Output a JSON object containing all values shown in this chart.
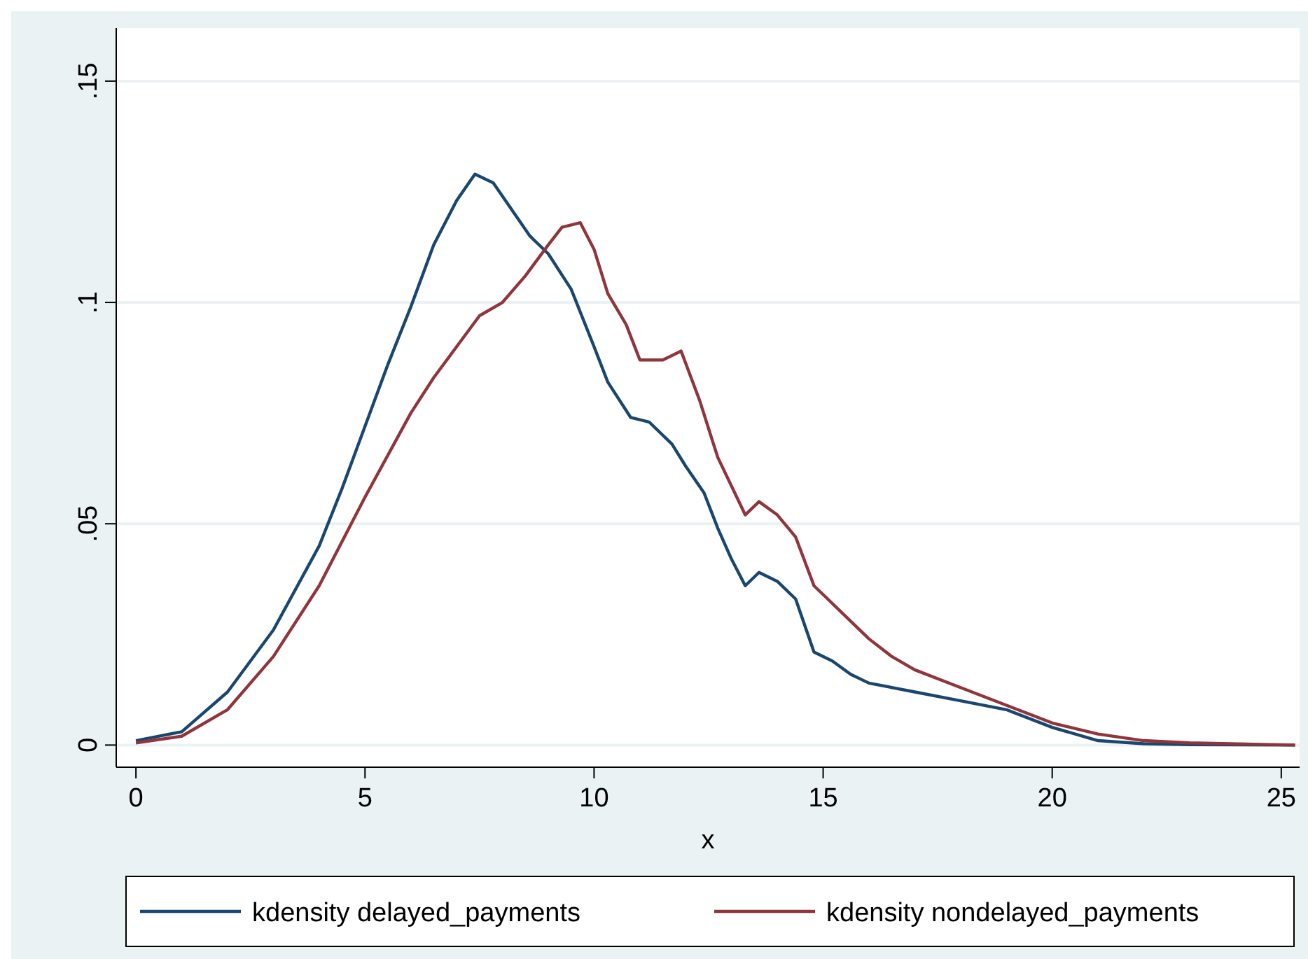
{
  "chart_data": {
    "type": "line",
    "xlabel": "x",
    "xlim": [
      -0.43,
      25.4
    ],
    "ylim": [
      -0.005,
      0.162
    ],
    "xticks": [
      0,
      5,
      10,
      15,
      20,
      25
    ],
    "yticks": [
      {
        "value": 0,
        "label": "0"
      },
      {
        "value": 0.05,
        "label": ".05"
      },
      {
        "value": 0.1,
        "label": ".1"
      },
      {
        "value": 0.15,
        "label": ".15"
      }
    ],
    "grid": "y",
    "legend": "bottom",
    "series": [
      {
        "name": "kdensity delayed_payments",
        "color": "#1a476f",
        "x": [
          0,
          1,
          2,
          3,
          4,
          4.5,
          5,
          5.5,
          6,
          6.5,
          7,
          7.4,
          7.8,
          8.2,
          8.6,
          9,
          9.5,
          10,
          10.3,
          10.8,
          11.2,
          11.7,
          12,
          12.4,
          12.7,
          13,
          13.3,
          13.6,
          14,
          14.4,
          14.8,
          15.2,
          15.6,
          16,
          17,
          18,
          19,
          20,
          21,
          22,
          23,
          25.3
        ],
        "values": [
          0.001,
          0.003,
          0.012,
          0.026,
          0.045,
          0.058,
          0.072,
          0.086,
          0.099,
          0.113,
          0.123,
          0.129,
          0.127,
          0.121,
          0.115,
          0.111,
          0.103,
          0.09,
          0.082,
          0.074,
          0.073,
          0.068,
          0.063,
          0.057,
          0.049,
          0.042,
          0.036,
          0.039,
          0.037,
          0.033,
          0.021,
          0.019,
          0.016,
          0.014,
          0.012,
          0.01,
          0.008,
          0.004,
          0.001,
          0.0003,
          0.0001,
          0
        ]
      },
      {
        "name": "kdensity nondelayed_payments",
        "color": "#90353b",
        "x": [
          0,
          1,
          2,
          3,
          4,
          5,
          6,
          6.5,
          7,
          7.5,
          8,
          8.5,
          9,
          9.3,
          9.7,
          10,
          10.3,
          10.7,
          11,
          11.5,
          11.9,
          12.3,
          12.7,
          13.3,
          13.6,
          14,
          14.4,
          14.8,
          15.2,
          15.6,
          16,
          16.5,
          17,
          18,
          19,
          20,
          21,
          22,
          23,
          25.3
        ],
        "values": [
          0.0005,
          0.002,
          0.008,
          0.02,
          0.036,
          0.056,
          0.075,
          0.083,
          0.09,
          0.097,
          0.1,
          0.106,
          0.113,
          0.117,
          0.118,
          0.112,
          0.102,
          0.095,
          0.087,
          0.087,
          0.089,
          0.078,
          0.065,
          0.052,
          0.055,
          0.052,
          0.047,
          0.036,
          0.032,
          0.028,
          0.024,
          0.02,
          0.017,
          0.013,
          0.009,
          0.005,
          0.0025,
          0.001,
          0.0005,
          0
        ]
      }
    ]
  }
}
